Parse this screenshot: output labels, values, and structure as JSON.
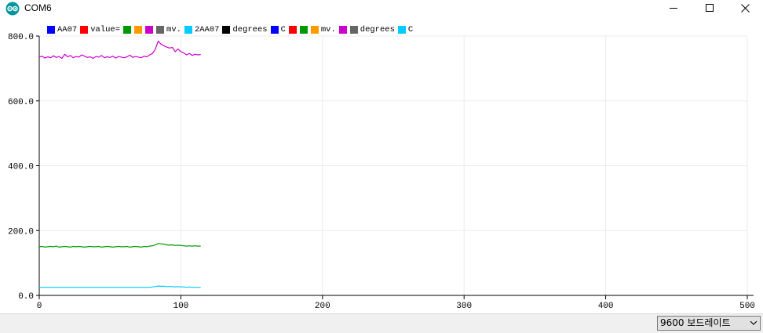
{
  "window": {
    "title": "COM6",
    "app_icon": "arduino-logo-icon",
    "controls": [
      "minimize-icon",
      "maximize-icon",
      "close-icon"
    ]
  },
  "legend": [
    {
      "label": "AA07",
      "color": "#0000ff"
    },
    {
      "label": "value=",
      "color": "#ff0000"
    },
    {
      "label": "",
      "color": "#009900"
    },
    {
      "label": "",
      "color": "#ff9900"
    },
    {
      "label": "",
      "color": "#cc00cc"
    },
    {
      "label": "mv.",
      "color": "#666666"
    },
    {
      "label": "2AA07",
      "color": "#00ccff"
    },
    {
      "label": "degrees",
      "color": "#000000"
    },
    {
      "label": "C",
      "color": "#0000ff"
    },
    {
      "label": "",
      "color": "#ff0000"
    },
    {
      "label": "",
      "color": "#009900"
    },
    {
      "label": "mv.",
      "color": "#ff9900"
    },
    {
      "label": "",
      "color": "#cc00cc"
    },
    {
      "label": "degrees",
      "color": "#666666"
    },
    {
      "label": "C",
      "color": "#00ccff"
    }
  ],
  "chart_data": {
    "type": "line",
    "xlim": [
      0,
      500
    ],
    "ylim": [
      0,
      800
    ],
    "x_ticks": [
      "0",
      "100",
      "200",
      "300",
      "400",
      "500"
    ],
    "y_ticks": [
      "0.0",
      "200.0",
      "400.0",
      "600.0",
      "800.0"
    ],
    "grid": true,
    "legend_position": "top-left",
    "series": [
      {
        "color": "#cc00cc",
        "x": [
          0,
          2,
          4,
          6,
          8,
          10,
          12,
          14,
          16,
          18,
          20,
          22,
          24,
          26,
          28,
          30,
          32,
          34,
          36,
          38,
          40,
          42,
          44,
          46,
          48,
          50,
          52,
          54,
          56,
          58,
          60,
          62,
          64,
          66,
          68,
          70,
          72,
          74,
          76,
          78,
          80,
          82,
          84,
          86,
          88,
          90,
          92,
          94,
          96,
          98,
          100,
          102,
          104,
          106,
          108,
          110,
          112,
          114
        ],
        "y": [
          735,
          738,
          732,
          736,
          733,
          739,
          734,
          737,
          731,
          744,
          736,
          740,
          733,
          737,
          735,
          742,
          738,
          734,
          736,
          731,
          737,
          735,
          740,
          733,
          736,
          734,
          738,
          732,
          737,
          735,
          733,
          736,
          741,
          734,
          737,
          735,
          733,
          738,
          736,
          742,
          746,
          760,
          784,
          775,
          770,
          766,
          763,
          765,
          752,
          760,
          752,
          748,
          742,
          746,
          740,
          744,
          742,
          743
        ]
      },
      {
        "color": "#009900",
        "x": [
          0,
          2,
          4,
          6,
          8,
          10,
          12,
          14,
          16,
          18,
          20,
          22,
          24,
          26,
          28,
          30,
          32,
          34,
          36,
          38,
          40,
          42,
          44,
          46,
          48,
          50,
          52,
          54,
          56,
          58,
          60,
          62,
          64,
          66,
          68,
          70,
          72,
          74,
          76,
          78,
          80,
          82,
          84,
          86,
          88,
          90,
          92,
          94,
          96,
          98,
          100,
          102,
          104,
          106,
          108,
          110,
          112,
          114
        ],
        "y": [
          150,
          151,
          149,
          150,
          151,
          150,
          152,
          149,
          150,
          151,
          150,
          149,
          151,
          150,
          151,
          150,
          149,
          150,
          151,
          150,
          150,
          151,
          149,
          150,
          151,
          150,
          149,
          150,
          151,
          150,
          150,
          151,
          149,
          150,
          151,
          150,
          149,
          151,
          150,
          152,
          153,
          156,
          160,
          159,
          158,
          156,
          155,
          156,
          154,
          155,
          154,
          153,
          152,
          153,
          152,
          153,
          152,
          152
        ]
      },
      {
        "color": "#00ccff",
        "x": [
          0,
          2,
          4,
          6,
          8,
          10,
          12,
          14,
          16,
          18,
          20,
          22,
          24,
          26,
          28,
          30,
          32,
          34,
          36,
          38,
          40,
          42,
          44,
          46,
          48,
          50,
          52,
          54,
          56,
          58,
          60,
          62,
          64,
          66,
          68,
          70,
          72,
          74,
          76,
          78,
          80,
          82,
          84,
          86,
          88,
          90,
          92,
          94,
          96,
          98,
          100,
          102,
          104,
          106,
          108,
          110,
          112,
          114
        ],
        "y": [
          25,
          25,
          25,
          25,
          25,
          25,
          25,
          25,
          25,
          25,
          25,
          25,
          25,
          25,
          25,
          25,
          25,
          25,
          25,
          25,
          25,
          25,
          25,
          25,
          25,
          25,
          25,
          25,
          25,
          25,
          25,
          25,
          25,
          25,
          25,
          25,
          25,
          25,
          25,
          25,
          26,
          27,
          29,
          28,
          28,
          27,
          27,
          27,
          26,
          27,
          26,
          26,
          25,
          26,
          25,
          25,
          25,
          25
        ]
      }
    ]
  },
  "footer": {
    "baud_rate": "9600 보드레이트"
  }
}
